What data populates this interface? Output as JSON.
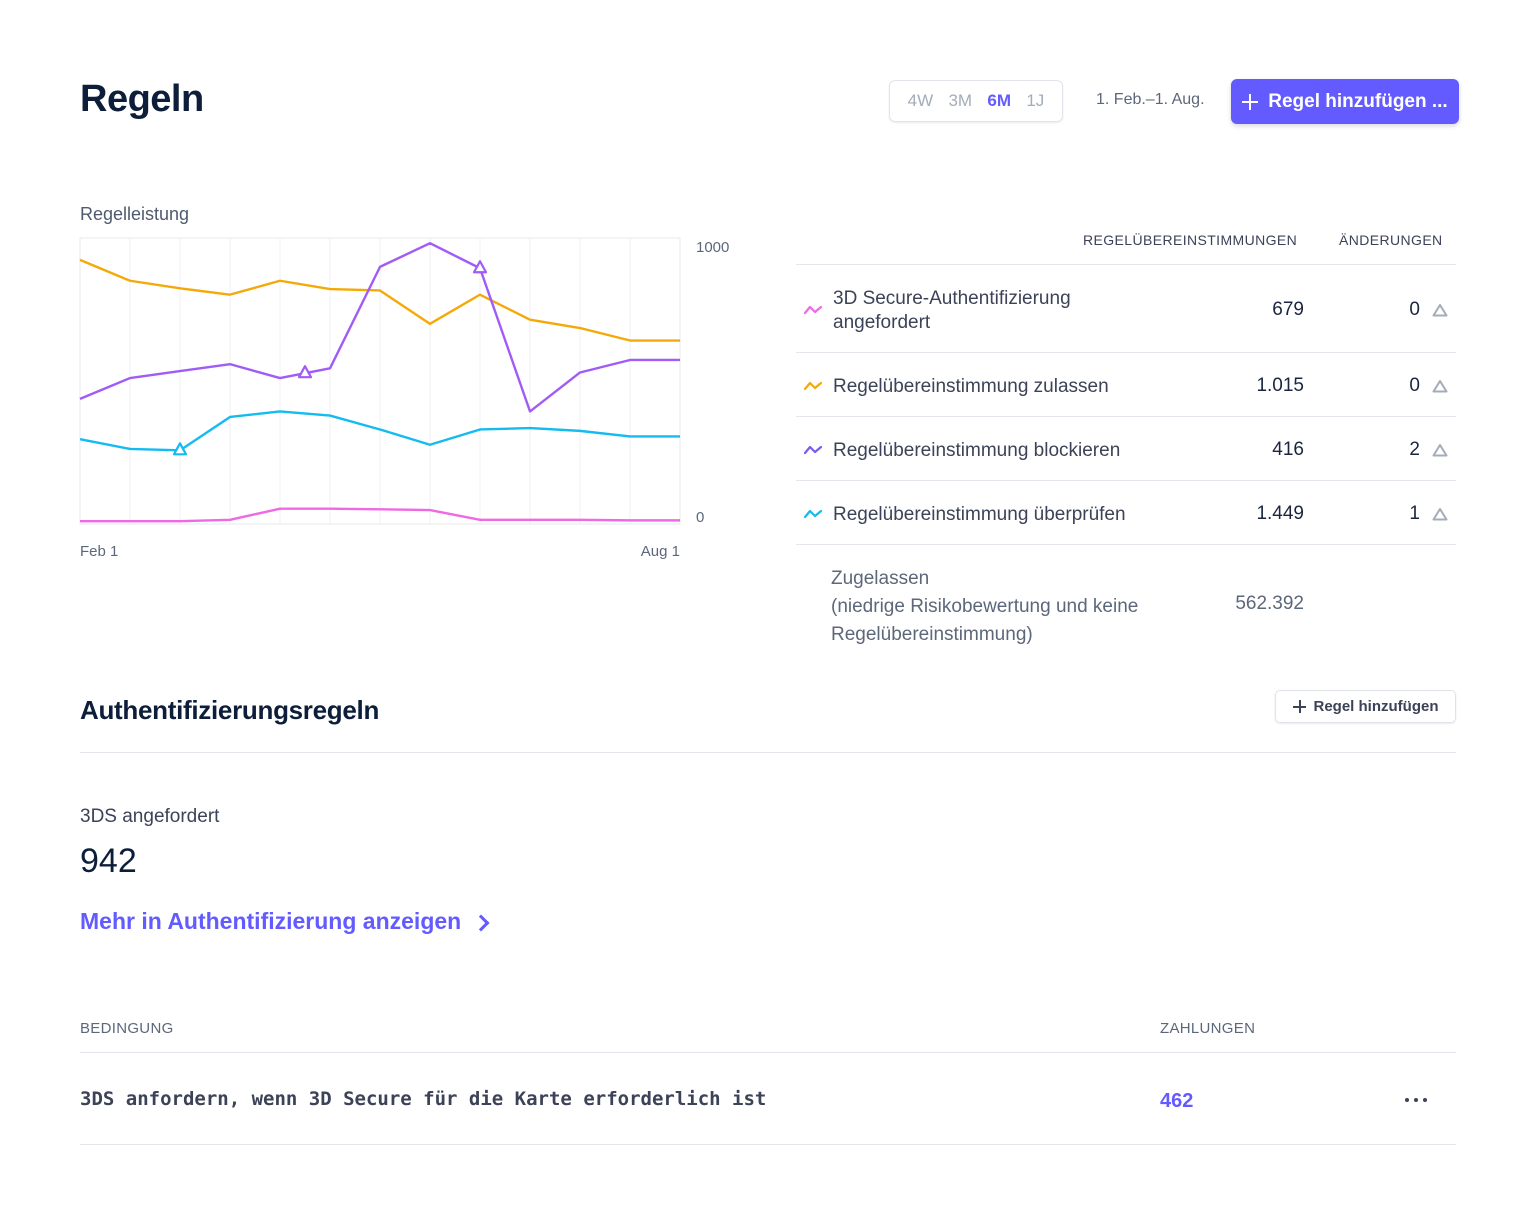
{
  "header": {
    "title": "Regeln",
    "ranges": [
      "4W",
      "3M",
      "6M",
      "1J"
    ],
    "active_range": "6M",
    "date_range": "1. Feb.–1. Aug.",
    "add_rule_label": "Regel hinzufügen ..."
  },
  "chart_data": {
    "type": "line",
    "title": "Regelleistung",
    "x_labels": [
      "Feb 1",
      "Aug 1"
    ],
    "x": [
      0,
      1,
      2,
      3,
      4,
      5,
      6,
      7,
      8,
      9,
      10,
      11,
      12
    ],
    "ylim": [
      0,
      1000
    ],
    "y_tick_labels": [
      "1000",
      "0"
    ],
    "grid": true,
    "series": [
      {
        "name": "3D Secure-Authentifizierung angefordert",
        "color": "#f069e4",
        "values": [
          10,
          10,
          10,
          15,
          55,
          55,
          53,
          50,
          15,
          15,
          15,
          13,
          13
        ]
      },
      {
        "name": "Regelübereinstimmung zulassen",
        "color": "#f4a908",
        "values": [
          950,
          875,
          848,
          825,
          875,
          845,
          840,
          720,
          825,
          735,
          705,
          660,
          660
        ]
      },
      {
        "name": "Regelübereinstimmung blockieren",
        "color": "#a05cf5",
        "values": [
          450,
          525,
          550,
          575,
          525,
          560,
          925,
          1010,
          920,
          405,
          545,
          590,
          590
        ]
      },
      {
        "name": "Regelübereinstimmung überprüfen",
        "color": "#14bbf0",
        "values": [
          305,
          270,
          265,
          385,
          405,
          390,
          340,
          285,
          340,
          345,
          335,
          315,
          315
        ]
      }
    ],
    "markers": [
      {
        "series": 3,
        "index": 2
      },
      {
        "series": 2,
        "index": 4.5
      },
      {
        "series": 2,
        "index": 8
      }
    ]
  },
  "rules_table": {
    "col_matches": "REGELÜBEREINSTIMMUNGEN",
    "col_changes": "ÄNDERUNGEN",
    "rows": [
      {
        "label_line1": "3D Secure-Authentifizierung",
        "label_line2": "angefordert",
        "matches": "679",
        "changes": "0"
      },
      {
        "label": "Regelübereinstimmung zulassen",
        "matches": "1.015",
        "changes": "0"
      },
      {
        "label": "Regelübereinstimmung blockieren",
        "matches": "416",
        "changes": "2"
      },
      {
        "label": "Regelübereinstimmung überprüfen",
        "matches": "1.449",
        "changes": "1"
      }
    ],
    "allowed_line1": "Zugelassen",
    "allowed_line2": "(niedrige Risikobewertung und keine",
    "allowed_line3": "Regelübereinstimmung)",
    "allowed_value": "562.392"
  },
  "auth_section": {
    "title": "Authentifizierungsregeln",
    "add_label": "Regel hinzufügen",
    "metric_label": "3DS angefordert",
    "metric_value": "942",
    "more_link": "Mehr in Authentifizierung anzeigen",
    "col_condition": "BEDINGUNG",
    "col_payments": "ZAHLUNGEN",
    "rows": [
      {
        "condition": "3DS anfordern, wenn 3D Secure für die Karte erforderlich ist",
        "payments": "462"
      }
    ]
  }
}
